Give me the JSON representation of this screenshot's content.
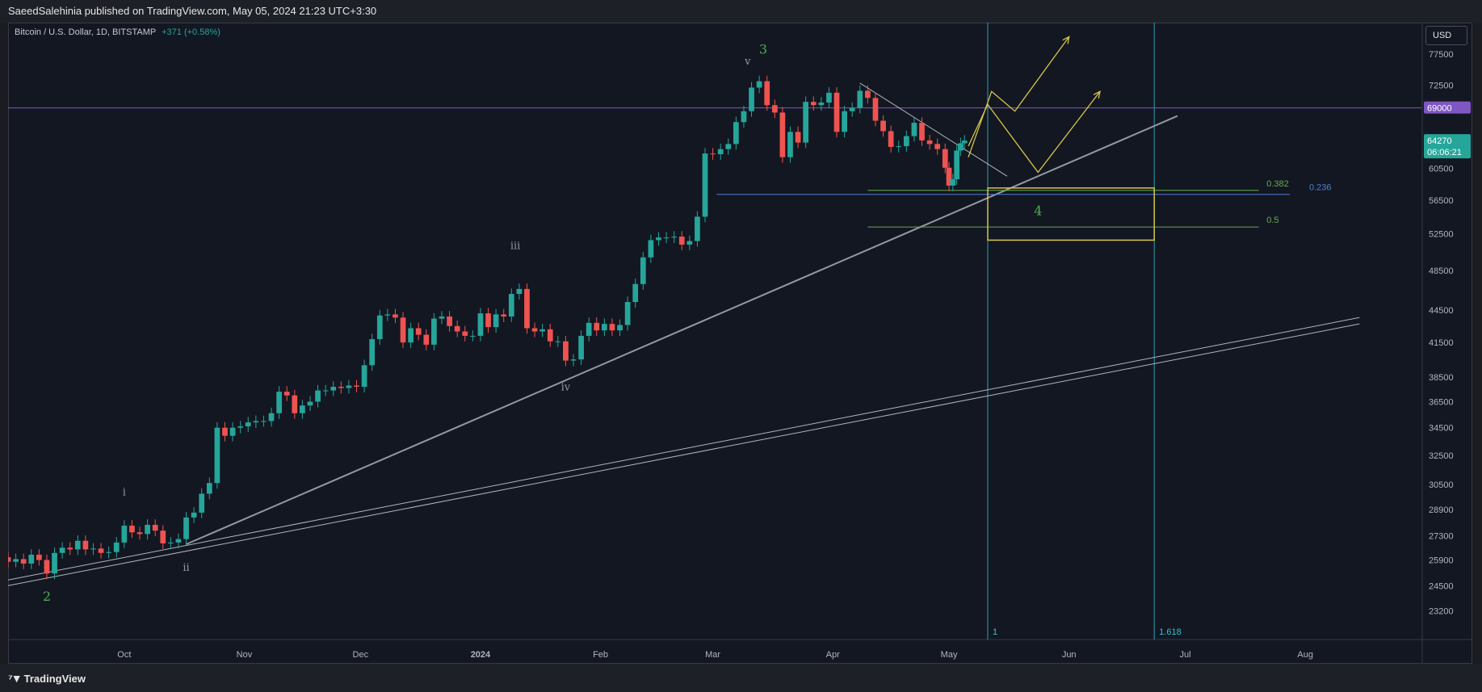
{
  "header": {
    "publisher_line": "SaeedSalehinia published on TradingView.com, May 05, 2024 21:23 UTC+3:30"
  },
  "symbol": {
    "title": "Bitcoin / U.S. Dollar, 1D, BITSTAMP",
    "change": "+371 (+0.58%)"
  },
  "currency": "USD",
  "branding": {
    "logo_text": "TradingView",
    "logo_icon": "tradingview-logo-icon"
  },
  "colors": {
    "up": "#26a69a",
    "down": "#ef5350",
    "background": "#131722",
    "trendline": "#b2b5be",
    "projection": "#d6c54a",
    "level_69000": "#7e57c2",
    "fib_0236": "#4c7fd6",
    "fib_green": "#6aa84f",
    "time_line": "#2ec4d6"
  },
  "chart_data": {
    "type": "candlestick",
    "y_scale": "log",
    "ylim": [
      21800,
      83000
    ],
    "xlim": [
      "2023-09-01",
      "2024-08-31"
    ],
    "y_ticks": [
      "77500",
      "72500",
      "69000",
      "64270",
      "60500",
      "56500",
      "52500",
      "48500",
      "44500",
      "41500",
      "38500",
      "36500",
      "34500",
      "32500",
      "30500",
      "28900",
      "27300",
      "25900",
      "24500",
      "23200"
    ],
    "x_ticks": [
      {
        "label": "Oct",
        "date": "2023-10-01",
        "bold": false
      },
      {
        "label": "Nov",
        "date": "2023-11-01",
        "bold": false
      },
      {
        "label": "Dec",
        "date": "2023-12-01",
        "bold": false
      },
      {
        "label": "2024",
        "date": "2024-01-01",
        "bold": true
      },
      {
        "label": "Feb",
        "date": "2024-02-01",
        "bold": false
      },
      {
        "label": "Mar",
        "date": "2024-03-01",
        "bold": false
      },
      {
        "label": "Apr",
        "date": "2024-04-01",
        "bold": false
      },
      {
        "label": "May",
        "date": "2024-05-01",
        "bold": false
      },
      {
        "label": "Jun",
        "date": "2024-06-01",
        "bold": false
      },
      {
        "label": "Jul",
        "date": "2024-07-01",
        "bold": false
      },
      {
        "label": "Aug",
        "date": "2024-08-01",
        "bold": false
      }
    ],
    "price_labels": [
      {
        "price": 69000,
        "text": "69000",
        "color": "#7e57c2"
      },
      {
        "price": 64270,
        "text": "64270",
        "sub": "06:06:21",
        "color": "#26a69a"
      }
    ],
    "candle_closes": [
      {
        "date": "2023-09-01",
        "close": 25800
      },
      {
        "date": "2023-09-03",
        "close": 25950
      },
      {
        "date": "2023-09-05",
        "close": 25700
      },
      {
        "date": "2023-09-07",
        "close": 26200
      },
      {
        "date": "2023-09-09",
        "close": 25900
      },
      {
        "date": "2023-09-11",
        "close": 25150
      },
      {
        "date": "2023-09-13",
        "close": 26300
      },
      {
        "date": "2023-09-15",
        "close": 26600
      },
      {
        "date": "2023-09-17",
        "close": 26500
      },
      {
        "date": "2023-09-19",
        "close": 27000
      },
      {
        "date": "2023-09-21",
        "close": 26500
      },
      {
        "date": "2023-09-23",
        "close": 26550
      },
      {
        "date": "2023-09-25",
        "close": 26300
      },
      {
        "date": "2023-09-27",
        "close": 26350
      },
      {
        "date": "2023-09-29",
        "close": 26900
      },
      {
        "date": "2023-10-01",
        "close": 27900
      },
      {
        "date": "2023-10-03",
        "close": 27500
      },
      {
        "date": "2023-10-05",
        "close": 27400
      },
      {
        "date": "2023-10-07",
        "close": 27950
      },
      {
        "date": "2023-10-09",
        "close": 27600
      },
      {
        "date": "2023-10-11",
        "close": 26850
      },
      {
        "date": "2023-10-13",
        "close": 26900
      },
      {
        "date": "2023-10-15",
        "close": 27100
      },
      {
        "date": "2023-10-17",
        "close": 28400
      },
      {
        "date": "2023-10-19",
        "close": 28700
      },
      {
        "date": "2023-10-21",
        "close": 29900
      },
      {
        "date": "2023-10-23",
        "close": 30600
      },
      {
        "date": "2023-10-25",
        "close": 34500
      },
      {
        "date": "2023-10-27",
        "close": 33900
      },
      {
        "date": "2023-10-29",
        "close": 34500
      },
      {
        "date": "2023-10-31",
        "close": 34600
      },
      {
        "date": "2023-11-02",
        "close": 34900
      },
      {
        "date": "2023-11-04",
        "close": 35000
      },
      {
        "date": "2023-11-06",
        "close": 35000
      },
      {
        "date": "2023-11-08",
        "close": 35600
      },
      {
        "date": "2023-11-10",
        "close": 37300
      },
      {
        "date": "2023-11-12",
        "close": 37000
      },
      {
        "date": "2023-11-14",
        "close": 35600
      },
      {
        "date": "2023-11-16",
        "close": 36200
      },
      {
        "date": "2023-11-18",
        "close": 36500
      },
      {
        "date": "2023-11-20",
        "close": 37400
      },
      {
        "date": "2023-11-22",
        "close": 37400
      },
      {
        "date": "2023-11-24",
        "close": 37700
      },
      {
        "date": "2023-11-26",
        "close": 37600
      },
      {
        "date": "2023-11-28",
        "close": 37800
      },
      {
        "date": "2023-11-30",
        "close": 37700
      },
      {
        "date": "2023-12-02",
        "close": 39500
      },
      {
        "date": "2023-12-04",
        "close": 41800
      },
      {
        "date": "2023-12-06",
        "close": 44000
      },
      {
        "date": "2023-12-08",
        "close": 44100
      },
      {
        "date": "2023-12-10",
        "close": 43800
      },
      {
        "date": "2023-12-12",
        "close": 41500
      },
      {
        "date": "2023-12-14",
        "close": 42800
      },
      {
        "date": "2023-12-16",
        "close": 42200
      },
      {
        "date": "2023-12-18",
        "close": 41300
      },
      {
        "date": "2023-12-20",
        "close": 43700
      },
      {
        "date": "2023-12-22",
        "close": 43900
      },
      {
        "date": "2023-12-24",
        "close": 43000
      },
      {
        "date": "2023-12-26",
        "close": 42500
      },
      {
        "date": "2023-12-28",
        "close": 42100
      },
      {
        "date": "2023-12-30",
        "close": 42100
      },
      {
        "date": "2024-01-01",
        "close": 44200
      },
      {
        "date": "2024-01-03",
        "close": 42900
      },
      {
        "date": "2024-01-05",
        "close": 44100
      },
      {
        "date": "2024-01-07",
        "close": 43900
      },
      {
        "date": "2024-01-09",
        "close": 46100
      },
      {
        "date": "2024-01-11",
        "close": 46600
      },
      {
        "date": "2024-01-13",
        "close": 42800
      },
      {
        "date": "2024-01-15",
        "close": 42500
      },
      {
        "date": "2024-01-17",
        "close": 42700
      },
      {
        "date": "2024-01-19",
        "close": 41600
      },
      {
        "date": "2024-01-21",
        "close": 41600
      },
      {
        "date": "2024-01-23",
        "close": 39900
      },
      {
        "date": "2024-01-25",
        "close": 40000
      },
      {
        "date": "2024-01-27",
        "close": 42100
      },
      {
        "date": "2024-01-29",
        "close": 43300
      },
      {
        "date": "2024-01-31",
        "close": 42600
      },
      {
        "date": "2024-02-02",
        "close": 43200
      },
      {
        "date": "2024-02-04",
        "close": 42600
      },
      {
        "date": "2024-02-06",
        "close": 43100
      },
      {
        "date": "2024-02-08",
        "close": 45300
      },
      {
        "date": "2024-02-10",
        "close": 47100
      },
      {
        "date": "2024-02-12",
        "close": 49900
      },
      {
        "date": "2024-02-14",
        "close": 51800
      },
      {
        "date": "2024-02-16",
        "close": 52100
      },
      {
        "date": "2024-02-18",
        "close": 52100
      },
      {
        "date": "2024-02-20",
        "close": 52200
      },
      {
        "date": "2024-02-22",
        "close": 51300
      },
      {
        "date": "2024-02-24",
        "close": 51700
      },
      {
        "date": "2024-02-26",
        "close": 54500
      },
      {
        "date": "2024-02-28",
        "close": 62500
      },
      {
        "date": "2024-03-01",
        "close": 62400
      },
      {
        "date": "2024-03-03",
        "close": 63100
      },
      {
        "date": "2024-03-05",
        "close": 63800
      },
      {
        "date": "2024-03-07",
        "close": 66900
      },
      {
        "date": "2024-03-09",
        "close": 68500
      },
      {
        "date": "2024-03-11",
        "close": 72100
      },
      {
        "date": "2024-03-13",
        "close": 73100
      },
      {
        "date": "2024-03-15",
        "close": 69400
      },
      {
        "date": "2024-03-17",
        "close": 68300
      },
      {
        "date": "2024-03-19",
        "close": 62000
      },
      {
        "date": "2024-03-21",
        "close": 65500
      },
      {
        "date": "2024-03-23",
        "close": 64000
      },
      {
        "date": "2024-03-25",
        "close": 69900
      },
      {
        "date": "2024-03-27",
        "close": 69400
      },
      {
        "date": "2024-03-29",
        "close": 69800
      },
      {
        "date": "2024-03-31",
        "close": 71300
      },
      {
        "date": "2024-04-02",
        "close": 65500
      },
      {
        "date": "2024-04-04",
        "close": 68500
      },
      {
        "date": "2024-04-06",
        "close": 69000
      },
      {
        "date": "2024-04-08",
        "close": 71600
      },
      {
        "date": "2024-04-10",
        "close": 70500
      },
      {
        "date": "2024-04-12",
        "close": 67100
      },
      {
        "date": "2024-04-14",
        "close": 65600
      },
      {
        "date": "2024-04-16",
        "close": 63400
      },
      {
        "date": "2024-04-18",
        "close": 63500
      },
      {
        "date": "2024-04-20",
        "close": 64900
      },
      {
        "date": "2024-04-22",
        "close": 66800
      },
      {
        "date": "2024-04-24",
        "close": 64300
      },
      {
        "date": "2024-04-26",
        "close": 63800
      },
      {
        "date": "2024-04-28",
        "close": 63100
      },
      {
        "date": "2024-04-30",
        "close": 60600
      },
      {
        "date": "2024-05-01",
        "close": 58300
      },
      {
        "date": "2024-05-02",
        "close": 59100
      },
      {
        "date": "2024-05-03",
        "close": 62900
      },
      {
        "date": "2024-05-04",
        "close": 63900
      },
      {
        "date": "2024-05-05",
        "close": 64270
      }
    ],
    "annotations": {
      "wave_labels": [
        {
          "text": "2",
          "date": "2023-09-11",
          "price": 23700,
          "color": "#4caf50",
          "size": "large"
        },
        {
          "text": "i",
          "date": "2023-10-01",
          "price": 29800,
          "color": "#9598a1",
          "size": "small"
        },
        {
          "text": "ii",
          "date": "2023-10-17",
          "price": 25300,
          "color": "#9598a1",
          "size": "small"
        },
        {
          "text": "iii",
          "date": "2024-01-10",
          "price": 50800,
          "color": "#9598a1",
          "size": "small"
        },
        {
          "text": "iv",
          "date": "2024-01-23",
          "price": 37400,
          "color": "#9598a1",
          "size": "small"
        },
        {
          "text": "v",
          "date": "2024-03-10",
          "price": 75800,
          "color": "#9598a1",
          "size": "small"
        },
        {
          "text": "3",
          "date": "2024-03-14",
          "price": 77600,
          "color": "#4caf50",
          "size": "large"
        },
        {
          "text": "4",
          "date": "2024-05-24",
          "price": 54700,
          "color": "#4caf50",
          "size": "large"
        }
      ],
      "fib_levels": [
        {
          "label": "0.236",
          "price": 57200,
          "start": "2024-03-02",
          "end": "2024-07-28",
          "color": "#4c7fd6"
        },
        {
          "label": "0.382",
          "price": 57700,
          "start": "2024-04-10",
          "end": "2024-07-20",
          "color": "#6aa84f"
        },
        {
          "label": "0.5",
          "price": 53300,
          "start": "2024-04-10",
          "end": "2024-07-20",
          "color": "#6aa84f"
        }
      ],
      "time_lines": [
        {
          "label": "1",
          "date": "2024-05-11"
        },
        {
          "label": "1.618",
          "date": "2024-06-23"
        }
      ]
    }
  }
}
